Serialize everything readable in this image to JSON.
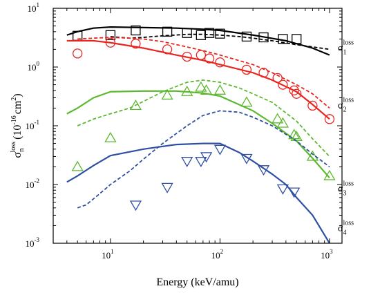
{
  "chart_data": {
    "type": "scatter",
    "title": "",
    "xlabel": "Energy (keV/amu)",
    "ylabel": {
      "symbol": "σ",
      "sub": "n",
      "sup": "loss",
      "unit_open": "(10",
      "unit_exp": "-16",
      "unit_mid": "cm",
      "unit_exp2": "2",
      "unit_close": ")"
    },
    "x_scale": "log",
    "y_scale": "log",
    "xlim": [
      3,
      1300
    ],
    "ylim": [
      0.001,
      10
    ],
    "x_ticks": [
      {
        "value": 10,
        "base": "10",
        "exp": "1"
      },
      {
        "value": 100,
        "base": "10",
        "exp": "2"
      },
      {
        "value": 1000,
        "base": "10",
        "exp": "3"
      }
    ],
    "y_ticks": [
      {
        "value": 0.001,
        "base": "10",
        "exp": "-3"
      },
      {
        "value": 0.01,
        "base": "10",
        "exp": "-2"
      },
      {
        "value": 0.1,
        "base": "10",
        "exp": "-1"
      },
      {
        "value": 1,
        "base": "10",
        "exp": "0"
      },
      {
        "value": 10,
        "base": "10",
        "exp": "1"
      }
    ],
    "series": [
      {
        "name": "σ1 loss",
        "label": {
          "symbol": "σ",
          "sub": "1",
          "sup": "loss"
        },
        "label_anchor": {
          "x": 1000,
          "y": 1.9
        },
        "color": "#000000",
        "marker": "square",
        "points": {
          "x": [
            5,
            10,
            17,
            33,
            50,
            67,
            80,
            100,
            175,
            250,
            375,
            500
          ],
          "y": [
            3.4,
            3.5,
            4.2,
            4.0,
            3.8,
            3.5,
            3.8,
            3.7,
            3.3,
            3.2,
            3.0,
            3.0
          ]
        },
        "solid": {
          "x": [
            4,
            5,
            7,
            10,
            20,
            40,
            70,
            100,
            200,
            400,
            700,
            1000
          ],
          "y": [
            3.5,
            4.0,
            4.6,
            4.8,
            4.7,
            4.6,
            4.4,
            4.2,
            3.5,
            2.8,
            2.1,
            1.6
          ]
        },
        "dashed": {
          "x": [
            10,
            15,
            20,
            30,
            50,
            70,
            100,
            150,
            200,
            300,
            500,
            700,
            1000
          ],
          "y": [
            3.3,
            3.1,
            3.2,
            3.4,
            3.6,
            3.6,
            3.5,
            3.3,
            3.1,
            2.8,
            2.4,
            2.2,
            2.0
          ]
        }
      },
      {
        "name": "σ2 loss",
        "label": {
          "symbol": "σ",
          "sub": "2",
          "sup": "loss"
        },
        "label_anchor": {
          "x": 1000,
          "y": 0.2
        },
        "color": "#e8251f",
        "marker": "circle",
        "points": {
          "x": [
            5,
            10,
            17,
            33,
            50,
            67,
            80,
            100,
            175,
            250,
            335,
            375,
            475,
            500,
            700,
            1000
          ],
          "y": [
            1.7,
            2.6,
            2.5,
            2.0,
            1.5,
            1.6,
            1.4,
            1.2,
            0.9,
            0.8,
            0.65,
            0.5,
            0.4,
            0.35,
            0.22,
            0.13
          ]
        },
        "solid": {
          "x": [
            4,
            5,
            7,
            10,
            20,
            40,
            70,
            100,
            200,
            300,
            500,
            700,
            1000
          ],
          "y": [
            2.8,
            2.8,
            2.8,
            2.6,
            2.1,
            1.6,
            1.3,
            1.1,
            0.8,
            0.6,
            0.38,
            0.23,
            0.13
          ]
        },
        "dashed": {
          "x": [
            5,
            7,
            10,
            15,
            20,
            30,
            50,
            70,
            100,
            200,
            300,
            500,
            700,
            1000
          ],
          "y": [
            3.0,
            3.1,
            3.2,
            3.1,
            3.0,
            2.7,
            2.2,
            1.9,
            1.6,
            1.1,
            0.8,
            0.5,
            0.35,
            0.2
          ]
        }
      },
      {
        "name": "σ3 loss",
        "label": {
          "symbol": "σ",
          "sub": "3",
          "sup": "loss"
        },
        "label_anchor": {
          "x": 1000,
          "y": 0.0075
        },
        "color": "#5cb82e",
        "marker": "triangle-up",
        "points": {
          "x": [
            5,
            10,
            17,
            33,
            50,
            67,
            75,
            100,
            175,
            335,
            375,
            475,
            500,
            700,
            1000
          ],
          "y": [
            0.02,
            0.062,
            0.22,
            0.33,
            0.38,
            0.45,
            0.4,
            0.4,
            0.25,
            0.13,
            0.11,
            0.07,
            0.065,
            0.03,
            0.014
          ]
        },
        "solid": {
          "x": [
            4,
            5,
            7,
            10,
            20,
            40,
            70,
            100,
            200,
            300,
            500,
            700,
            1000
          ],
          "y": [
            0.16,
            0.2,
            0.3,
            0.38,
            0.39,
            0.39,
            0.36,
            0.32,
            0.18,
            0.11,
            0.055,
            0.028,
            0.013
          ]
        },
        "dashed": {
          "x": [
            5,
            7,
            10,
            15,
            20,
            30,
            50,
            70,
            100,
            150,
            200,
            300,
            500,
            700,
            1000
          ],
          "y": [
            0.1,
            0.13,
            0.16,
            0.2,
            0.26,
            0.38,
            0.55,
            0.6,
            0.55,
            0.44,
            0.35,
            0.25,
            0.12,
            0.06,
            0.03
          ]
        }
      },
      {
        "name": "σ4 loss",
        "label": {
          "symbol": "σ",
          "sub": "4",
          "sup": "loss"
        },
        "label_anchor": {
          "x": 1000,
          "y": 0.0016
        },
        "color": "#2f4fa3",
        "marker": "triangle-down",
        "points": {
          "x": [
            17,
            33,
            50,
            67,
            75,
            100,
            175,
            250,
            375,
            475
          ],
          "y": [
            0.0045,
            0.009,
            0.025,
            0.025,
            0.03,
            0.04,
            0.028,
            0.018,
            0.0085,
            0.0075
          ]
        },
        "solid": {
          "x": [
            4,
            5,
            7,
            10,
            20,
            40,
            70,
            100,
            150,
            200,
            300,
            400,
            500,
            700,
            1000
          ],
          "y": [
            0.011,
            0.014,
            0.021,
            0.031,
            0.04,
            0.048,
            0.05,
            0.05,
            0.035,
            0.025,
            0.015,
            0.01,
            0.006,
            0.003,
            0.001
          ]
        },
        "dashed": {
          "x": [
            5,
            6,
            8,
            10,
            15,
            20,
            30,
            50,
            70,
            100,
            150,
            200,
            300,
            500,
            700,
            1000
          ],
          "y": [
            0.004,
            0.0045,
            0.007,
            0.01,
            0.017,
            0.027,
            0.05,
            0.1,
            0.15,
            0.18,
            0.17,
            0.14,
            0.1,
            0.055,
            0.033,
            0.02
          ]
        }
      }
    ]
  }
}
